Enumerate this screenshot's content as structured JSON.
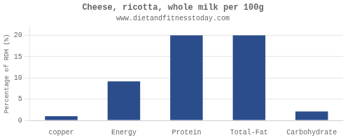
{
  "chart_data": {
    "type": "bar",
    "title": "Cheese, ricotta, whole milk per 100g",
    "subtitle": "www.dietandfitnesstoday.com",
    "categories": [
      "copper",
      "Energy",
      "Protein",
      "Total-Fat",
      "Carbohydrate"
    ],
    "values": [
      1,
      9.2,
      20,
      20,
      2.1
    ],
    "color": "#2b4d8c",
    "ylabel": "Percentage of RDH (%)",
    "ylim": [
      0,
      22
    ],
    "yticks": [
      0,
      5,
      10,
      15,
      20
    ],
    "grid": true
  }
}
